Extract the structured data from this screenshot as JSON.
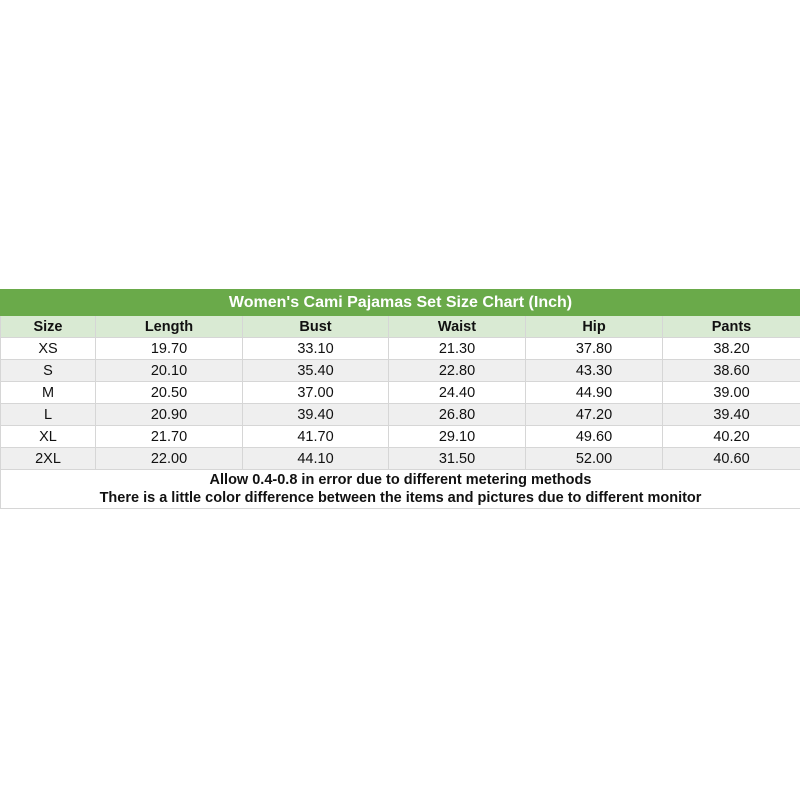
{
  "title": "Women's Cami Pajamas Set Size Chart (Inch)",
  "columns": [
    "Size",
    "Length",
    "Bust",
    "Waist",
    "Hip",
    "Pants"
  ],
  "rows": [
    [
      "XS",
      "19.70",
      "33.10",
      "21.30",
      "37.80",
      "38.20"
    ],
    [
      "S",
      "20.10",
      "35.40",
      "22.80",
      "43.30",
      "38.60"
    ],
    [
      "M",
      "20.50",
      "37.00",
      "24.40",
      "44.90",
      "39.00"
    ],
    [
      "L",
      "20.90",
      "39.40",
      "26.80",
      "47.20",
      "39.40"
    ],
    [
      "XL",
      "21.70",
      "41.70",
      "29.10",
      "49.60",
      "40.20"
    ],
    [
      "2XL",
      "22.00",
      "44.10",
      "31.50",
      "52.00",
      "40.60"
    ]
  ],
  "notes": [
    "Allow 0.4-0.8 in error due to different metering methods",
    "There is a little color difference between the items and pictures due to different monitor"
  ],
  "colors": {
    "title_bg": "#6aaa4a",
    "header_bg": "#d9ead3",
    "alt_row_bg": "#efefef"
  }
}
